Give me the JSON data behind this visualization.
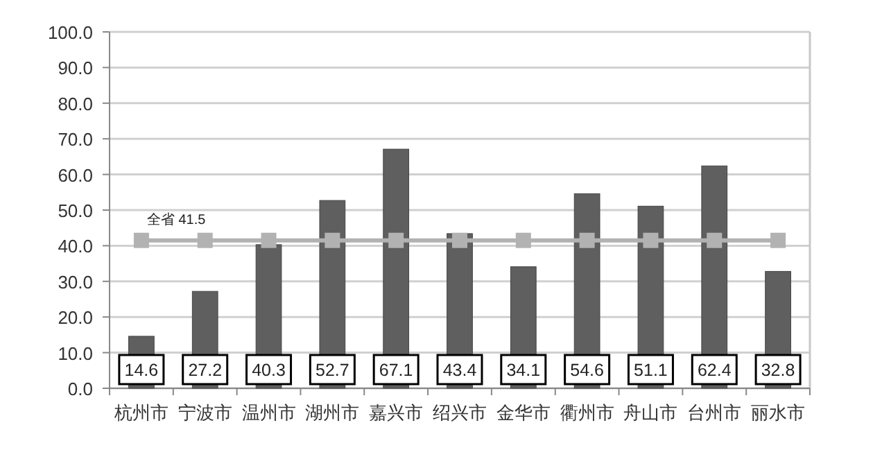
{
  "chart_data": {
    "type": "bar",
    "categories": [
      "杭州市",
      "宁波市",
      "温州市",
      "湖州市",
      "嘉兴市",
      "绍兴市",
      "金华市",
      "衢州市",
      "舟山市",
      "台州市",
      "丽水市"
    ],
    "series": [
      {
        "color": "#5f5f5f",
        "values": [
          14.6,
          27.2,
          40.3,
          52.7,
          67.1,
          43.4,
          34.1,
          54.6,
          51.1,
          62.4,
          32.8
        ],
        "value_labels": [
          "14.6",
          "27.2",
          "40.3",
          "52.7",
          "67.1",
          "43.4",
          "34.1",
          "54.6",
          "51.1",
          "62.4",
          "32.8"
        ]
      },
      {
        "type": "line",
        "color": "#b2b2b2",
        "marker": "square",
        "values": [
          41.5,
          41.5,
          41.5,
          41.5,
          41.5,
          41.5,
          41.5,
          41.5,
          41.5,
          41.5,
          41.5
        ]
      }
    ],
    "ylim": [
      0,
      100
    ],
    "yticks": [
      {
        "value": 0,
        "label": "0.0"
      },
      {
        "value": 10,
        "label": "10.0"
      },
      {
        "value": 20,
        "label": "20.0"
      },
      {
        "value": 30,
        "label": "30.0"
      },
      {
        "value": 40,
        "label": "40.0"
      },
      {
        "value": 50,
        "label": "50.0"
      },
      {
        "value": 60,
        "label": "60.0"
      },
      {
        "value": 70,
        "label": "70.0"
      },
      {
        "value": 80,
        "label": "80.0"
      },
      {
        "value": 90,
        "label": "90.0"
      },
      {
        "value": 100,
        "label": "100.0"
      }
    ],
    "grid": "y",
    "annotations": [
      {
        "text": "全省 41.5",
        "x": "杭州市",
        "y": 41.5
      }
    ]
  }
}
